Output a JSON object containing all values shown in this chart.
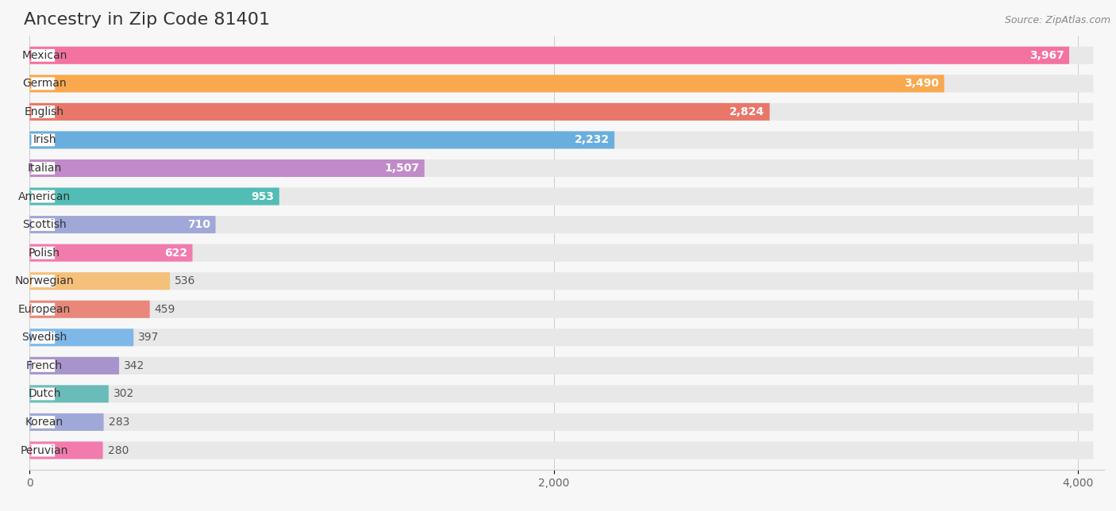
{
  "title": "Ancestry in Zip Code 81401",
  "source_text": "Source: ZipAtlas.com",
  "categories": [
    "Mexican",
    "German",
    "English",
    "Irish",
    "Italian",
    "American",
    "Scottish",
    "Polish",
    "Norwegian",
    "European",
    "Swedish",
    "French",
    "Dutch",
    "Korean",
    "Peruvian"
  ],
  "values": [
    3967,
    3490,
    2824,
    2232,
    1507,
    953,
    710,
    622,
    536,
    459,
    397,
    342,
    302,
    283,
    280
  ],
  "bar_colors": [
    "#F472A0",
    "#F9A84D",
    "#E8776A",
    "#6AAEDE",
    "#C08BC8",
    "#52BDB5",
    "#A0A8D8",
    "#F27BAE",
    "#F5C07A",
    "#E8877A",
    "#7EB8E8",
    "#A894CC",
    "#6ABCB8",
    "#A0A8D8",
    "#F27BAE"
  ],
  "value_inside_threshold": 600,
  "xlim_max": 4100,
  "bg_color": "#f7f7f7",
  "bar_bg_color": "#e8e8e8",
  "title_fontsize": 16,
  "label_fontsize": 10,
  "value_fontsize": 10,
  "tick_fontsize": 10
}
